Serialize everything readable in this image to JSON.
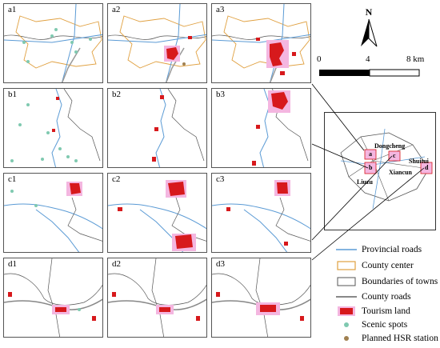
{
  "panels": {
    "a1": "a1",
    "a2": "a2",
    "a3": "a3",
    "b1": "b1",
    "b2": "b2",
    "b3": "b3",
    "c1": "c1",
    "c2": "c2",
    "c3": "c3",
    "d1": "d1",
    "d2": "d2",
    "d3": "d3"
  },
  "north": "N",
  "scale": {
    "zero": "0",
    "mid": "4",
    "end": "8 km"
  },
  "inset": {
    "box_letters": [
      "a",
      "b",
      "c",
      "d"
    ],
    "places": {
      "dongcheng": "Dongcheng",
      "shuitui": "Shuitui",
      "xiancun": "Xiancun",
      "liuzu": "Liuzu"
    }
  },
  "legend": {
    "provincial_roads": "Provincial roads",
    "county_center": "County center",
    "boundaries_of_towns": "Boundaries of towns",
    "county_roads": "County roads",
    "tourism_land": "Tourism land",
    "scenic_spots": "Scenic spots",
    "planned_hsr_station": "Planned HSR station"
  },
  "colors": {
    "provincial_road": "#5b9bd5",
    "county_center_border": "#e0a040",
    "town_boundary": "#555555",
    "county_road": "#888888",
    "tourism_land": "#d7191c",
    "tourism_halo": "#f4b6e0",
    "scenic_spot": "#7fc9b0",
    "hsr_station": "#a08050"
  }
}
